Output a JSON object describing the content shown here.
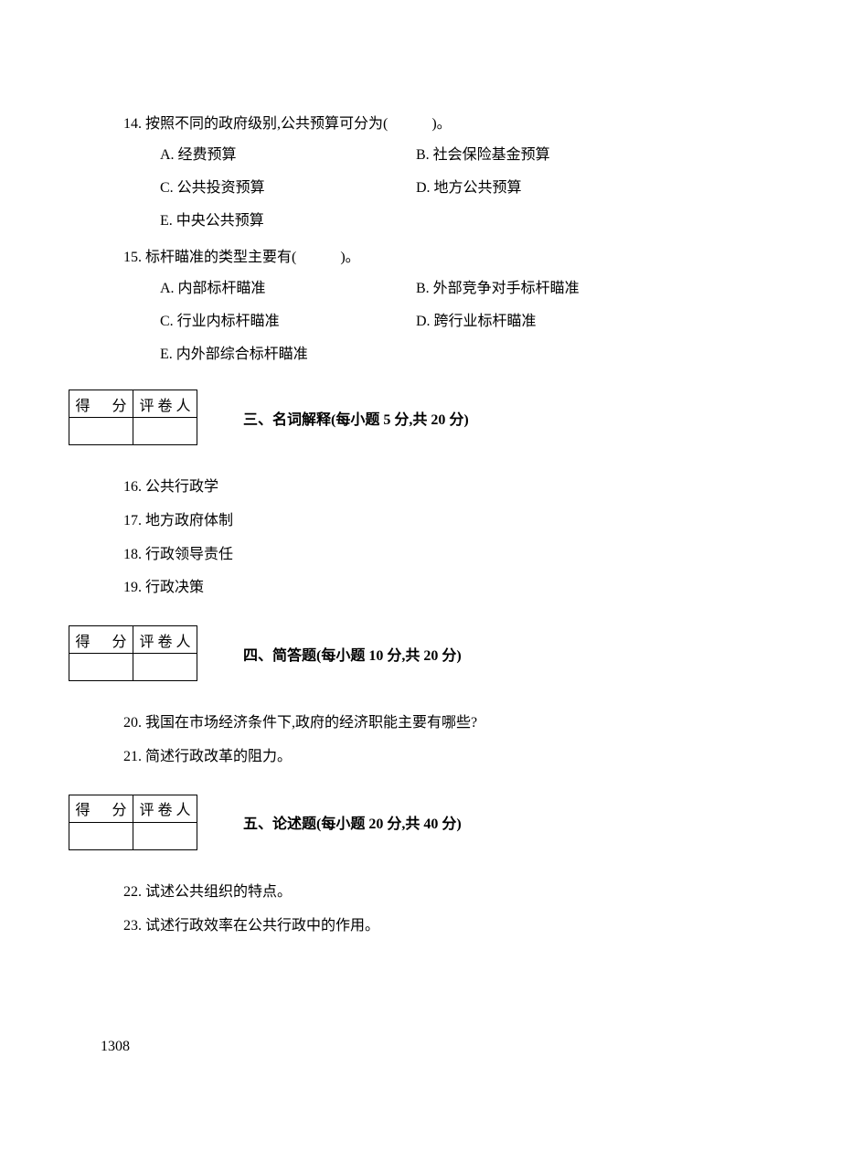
{
  "q14": {
    "stem": "14. 按照不同的政府级别,公共预算可分为(　　　)。",
    "opts": {
      "A": "A. 经费预算",
      "B": "B. 社会保险基金预算",
      "C": "C. 公共投资预算",
      "D": "D. 地方公共预算",
      "E": "E. 中央公共预算"
    }
  },
  "q15": {
    "stem": "15. 标杆瞄准的类型主要有(　　　)。",
    "opts": {
      "A": "A. 内部标杆瞄准",
      "B": "B. 外部竞争对手标杆瞄准",
      "C": "C. 行业内标杆瞄准",
      "D": "D. 跨行业标杆瞄准",
      "E": "E. 内外部综合标杆瞄准"
    }
  },
  "scorebox": {
    "score_label": "得　分",
    "grader_label": "评卷人"
  },
  "section3": {
    "title": "三、名词解释(每小题 5 分,共 20 分)",
    "items": {
      "i16": "16. 公共行政学",
      "i17": "17. 地方政府体制",
      "i18": "18. 行政领导责任",
      "i19": "19. 行政决策"
    }
  },
  "section4": {
    "title": "四、简答题(每小题 10 分,共 20 分)",
    "items": {
      "i20": "20. 我国在市场经济条件下,政府的经济职能主要有哪些?",
      "i21": "21. 简述行政改革的阻力。"
    }
  },
  "section5": {
    "title": "五、论述题(每小题 20 分,共 40 分)",
    "items": {
      "i22": "22. 试述公共组织的特点。",
      "i23": "23. 试述行政效率在公共行政中的作用。"
    }
  },
  "page_number": "1308"
}
